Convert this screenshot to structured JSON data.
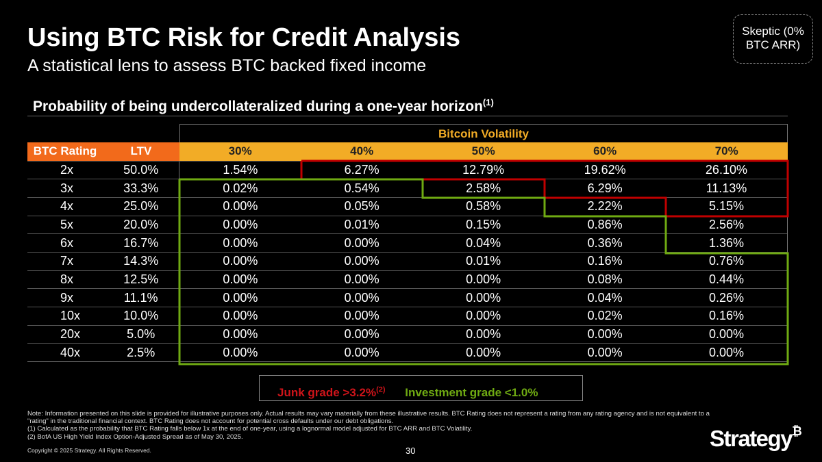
{
  "header": {
    "title": "Using BTC Risk for Credit Analysis",
    "subtitle": "A statistical lens to assess BTC backed fixed income",
    "badge": "Skeptic (0% BTC ARR)"
  },
  "section": {
    "title": "Probability of being undercollateralized during a one-year horizon",
    "footnote": "(1)"
  },
  "table": {
    "group_header": "Bitcoin Volatility",
    "columns": [
      "BTC Rating",
      "LTV",
      "30%",
      "40%",
      "50%",
      "60%",
      "70%"
    ],
    "rows": [
      [
        "2x",
        "50.0%",
        "1.54%",
        "6.27%",
        "12.79%",
        "19.62%",
        "26.10%"
      ],
      [
        "3x",
        "33.3%",
        "0.02%",
        "0.54%",
        "2.58%",
        "6.29%",
        "11.13%"
      ],
      [
        "4x",
        "25.0%",
        "0.00%",
        "0.05%",
        "0.58%",
        "2.22%",
        "5.15%"
      ],
      [
        "5x",
        "20.0%",
        "0.00%",
        "0.01%",
        "0.15%",
        "0.86%",
        "2.56%"
      ],
      [
        "6x",
        "16.7%",
        "0.00%",
        "0.00%",
        "0.04%",
        "0.36%",
        "1.36%"
      ],
      [
        "7x",
        "14.3%",
        "0.00%",
        "0.00%",
        "0.01%",
        "0.16%",
        "0.76%"
      ],
      [
        "8x",
        "12.5%",
        "0.00%",
        "0.00%",
        "0.00%",
        "0.08%",
        "0.44%"
      ],
      [
        "9x",
        "11.1%",
        "0.00%",
        "0.00%",
        "0.00%",
        "0.04%",
        "0.26%"
      ],
      [
        "10x",
        "10.0%",
        "0.00%",
        "0.00%",
        "0.00%",
        "0.02%",
        "0.16%"
      ],
      [
        "20x",
        "5.0%",
        "0.00%",
        "0.00%",
        "0.00%",
        "0.00%",
        "0.00%"
      ],
      [
        "40x",
        "2.5%",
        "0.00%",
        "0.00%",
        "0.00%",
        "0.00%",
        "0.00%"
      ]
    ]
  },
  "legend": {
    "junk": "Junk grade >3.2%",
    "junk_footnote": "(2)",
    "investment": "Investment grade <1.0%",
    "junk_color": "#D0141A",
    "investment_color": "#6FAA12"
  },
  "notes": [
    "Note: Information presented on this slide is provided for illustrative purposes only. Actual results may vary materially from these illustrative results. BTC Rating does not represent a rating from any rating agency and is not equivalent to a \"rating\" in the traditional financial context. BTC Rating does not account for potential cross defaults under our debt obligations.",
    "(1) Calculated as the probability that BTC Rating falls below 1x at the end of one-year, using a lognormal model adjusted for BTC ARR and BTC Volatility.",
    "(2) BofA US High Yield Index Option-Adjusted Spread as of May 30, 2025."
  ],
  "footer": {
    "copyright": "Copyright © 2025 Strategy. All Rights Reserved.",
    "page": "30",
    "logo": "Strategy",
    "logo_mark": "₿"
  }
}
